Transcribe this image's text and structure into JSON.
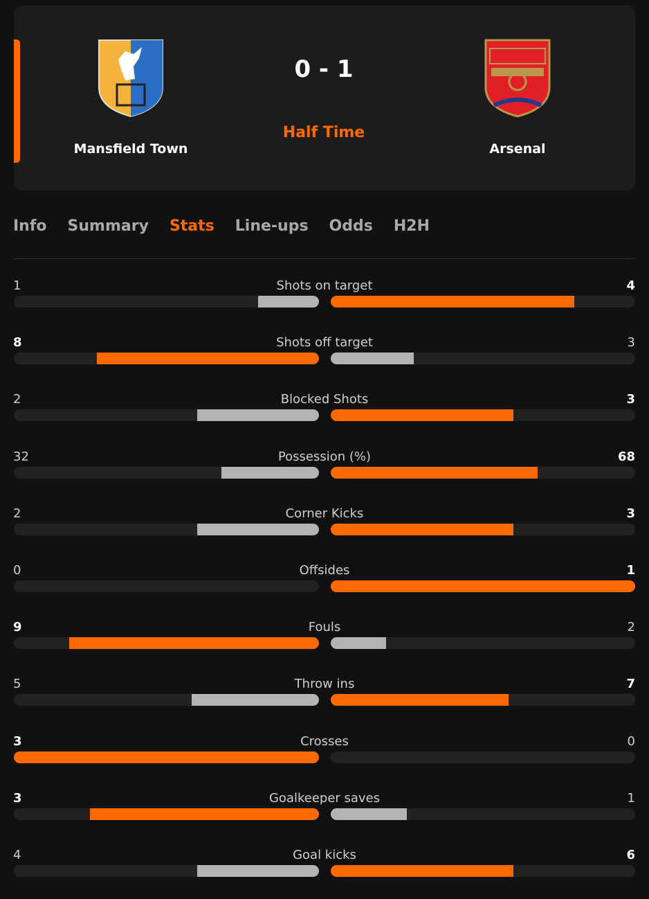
{
  "match": {
    "home_team": "Mansfield Town",
    "away_team": "Arsenal",
    "score": "0 - 1",
    "status": "Half Time"
  },
  "tabs": {
    "items": [
      "Info",
      "Summary",
      "Stats",
      "Line-ups",
      "Odds",
      "H2H"
    ],
    "active": 2
  },
  "stats": {
    "rows": [
      {
        "label": "Shots on target",
        "home": 1,
        "away": 4
      },
      {
        "label": "Shots off target",
        "home": 8,
        "away": 3
      },
      {
        "label": "Blocked Shots",
        "home": 2,
        "away": 3
      },
      {
        "label": "Possession (%)",
        "home": 32,
        "away": 68
      },
      {
        "label": "Corner Kicks",
        "home": 2,
        "away": 3
      },
      {
        "label": "Offsides",
        "home": 0,
        "away": 1
      },
      {
        "label": "Fouls",
        "home": 9,
        "away": 2
      },
      {
        "label": "Throw ins",
        "home": 5,
        "away": 7
      },
      {
        "label": "Crosses",
        "home": 3,
        "away": 0
      },
      {
        "label": "Goalkeeper saves",
        "home": 3,
        "away": 1
      },
      {
        "label": "Goal kicks",
        "home": 4,
        "away": 6
      }
    ]
  }
}
